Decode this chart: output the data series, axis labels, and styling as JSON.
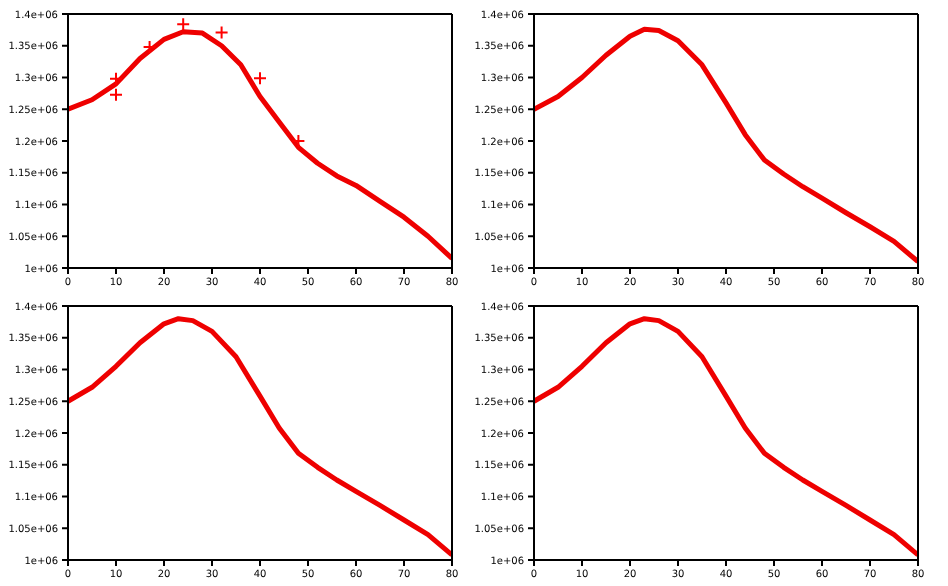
{
  "chart_data": [
    {
      "type": "line",
      "xlim": [
        0,
        80
      ],
      "xticks": [
        0,
        10,
        20,
        30,
        40,
        50,
        60,
        70,
        80
      ],
      "ylim": [
        1000000,
        1400000
      ],
      "yticks": [
        {
          "value": 1000000,
          "label": "1e+06"
        },
        {
          "value": 1050000,
          "label": "1.05e+06"
        },
        {
          "value": 1100000,
          "label": "1.1e+06"
        },
        {
          "value": 1150000,
          "label": "1.15e+06"
        },
        {
          "value": 1200000,
          "label": "1.2e+06"
        },
        {
          "value": 1250000,
          "label": "1.25e+06"
        },
        {
          "value": 1300000,
          "label": "1.3e+06"
        },
        {
          "value": 1350000,
          "label": "1.35e+06"
        },
        {
          "value": 1400000,
          "label": "1.4e+06"
        }
      ],
      "grid": false,
      "legend": false,
      "series": [
        {
          "type": "line",
          "color": "#ee0000",
          "x": [
            0,
            5,
            10,
            15,
            20,
            24,
            28,
            32,
            36,
            40,
            44,
            48,
            52,
            56,
            60,
            65,
            70,
            75,
            80
          ],
          "values": [
            1250000,
            1265000,
            1290000,
            1330000,
            1360000,
            1372000,
            1370000,
            1350000,
            1320000,
            1270000,
            1230000,
            1190000,
            1165000,
            1145000,
            1130000,
            1105000,
            1080000,
            1050000,
            1015000
          ]
        },
        {
          "type": "scatter",
          "marker": "cross",
          "color": "#ff0000",
          "x": [
            10,
            10,
            17,
            24,
            32,
            40,
            48
          ],
          "values": [
            1298000,
            1273000,
            1348000,
            1384000,
            1371000,
            1299000,
            1200000
          ]
        }
      ]
    },
    {
      "type": "line",
      "xlim": [
        0,
        80
      ],
      "xticks": [
        0,
        10,
        20,
        30,
        40,
        50,
        60,
        70,
        80
      ],
      "ylim": [
        1000000,
        1400000
      ],
      "yticks": [
        {
          "value": 1000000,
          "label": "1e+06"
        },
        {
          "value": 1050000,
          "label": "1.05e+06"
        },
        {
          "value": 1100000,
          "label": "1.1e+06"
        },
        {
          "value": 1150000,
          "label": "1.15e+06"
        },
        {
          "value": 1200000,
          "label": "1.2e+06"
        },
        {
          "value": 1250000,
          "label": "1.25e+06"
        },
        {
          "value": 1300000,
          "label": "1.3e+06"
        },
        {
          "value": 1350000,
          "label": "1.35e+06"
        },
        {
          "value": 1400000,
          "label": "1.4e+06"
        }
      ],
      "grid": false,
      "legend": false,
      "series": [
        {
          "type": "line",
          "color": "#ee0000",
          "x": [
            0,
            5,
            10,
            15,
            20,
            23,
            26,
            30,
            35,
            40,
            44,
            48,
            52,
            56,
            60,
            65,
            70,
            75,
            80
          ],
          "values": [
            1250000,
            1270000,
            1300000,
            1335000,
            1365000,
            1376000,
            1374000,
            1358000,
            1320000,
            1260000,
            1210000,
            1170000,
            1148000,
            1128000,
            1110000,
            1087000,
            1065000,
            1042000,
            1010000
          ]
        }
      ]
    },
    {
      "type": "line",
      "xlim": [
        0,
        80
      ],
      "xticks": [
        0,
        10,
        20,
        30,
        40,
        50,
        60,
        70,
        80
      ],
      "ylim": [
        1000000,
        1400000
      ],
      "yticks": [
        {
          "value": 1000000,
          "label": "1e+06"
        },
        {
          "value": 1050000,
          "label": "1.05e+06"
        },
        {
          "value": 1100000,
          "label": "1.1e+06"
        },
        {
          "value": 1150000,
          "label": "1.15e+06"
        },
        {
          "value": 1200000,
          "label": "1.2e+06"
        },
        {
          "value": 1250000,
          "label": "1.25e+06"
        },
        {
          "value": 1300000,
          "label": "1.3e+06"
        },
        {
          "value": 1350000,
          "label": "1.35e+06"
        },
        {
          "value": 1400000,
          "label": "1.4e+06"
        }
      ],
      "grid": false,
      "legend": false,
      "series": [
        {
          "type": "line",
          "color": "#ee0000",
          "x": [
            0,
            5,
            10,
            15,
            20,
            23,
            26,
            30,
            35,
            40,
            44,
            48,
            52,
            56,
            60,
            65,
            70,
            75,
            80
          ],
          "values": [
            1250000,
            1272000,
            1305000,
            1342000,
            1372000,
            1380000,
            1377000,
            1360000,
            1320000,
            1258000,
            1208000,
            1168000,
            1146000,
            1126000,
            1108000,
            1086000,
            1063000,
            1040000,
            1008000
          ]
        }
      ]
    },
    {
      "type": "line",
      "xlim": [
        0,
        80
      ],
      "xticks": [
        0,
        10,
        20,
        30,
        40,
        50,
        60,
        70,
        80
      ],
      "ylim": [
        1000000,
        1400000
      ],
      "yticks": [
        {
          "value": 1000000,
          "label": "1e+06"
        },
        {
          "value": 1050000,
          "label": "1.05e+06"
        },
        {
          "value": 1100000,
          "label": "1.1e+06"
        },
        {
          "value": 1150000,
          "label": "1.15e+06"
        },
        {
          "value": 1200000,
          "label": "1.2e+06"
        },
        {
          "value": 1250000,
          "label": "1.25e+06"
        },
        {
          "value": 1300000,
          "label": "1.3e+06"
        },
        {
          "value": 1350000,
          "label": "1.35e+06"
        },
        {
          "value": 1400000,
          "label": "1.4e+06"
        }
      ],
      "grid": false,
      "legend": false,
      "series": [
        {
          "type": "line",
          "color": "#ee0000",
          "x": [
            0,
            5,
            10,
            15,
            20,
            23,
            26,
            30,
            35,
            40,
            44,
            48,
            52,
            56,
            60,
            65,
            70,
            75,
            80
          ],
          "values": [
            1250000,
            1272000,
            1305000,
            1342000,
            1372000,
            1380000,
            1377000,
            1360000,
            1320000,
            1258000,
            1208000,
            1168000,
            1146000,
            1126000,
            1108000,
            1086000,
            1063000,
            1040000,
            1008000
          ]
        }
      ]
    }
  ]
}
